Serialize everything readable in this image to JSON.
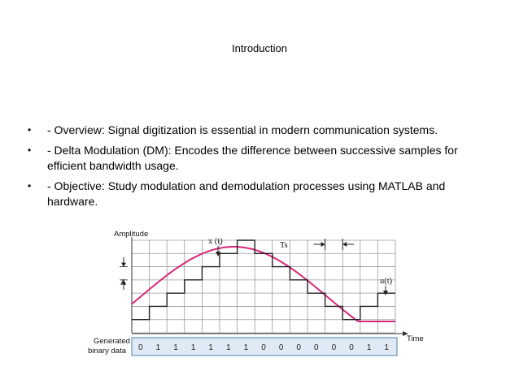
{
  "slide": {
    "title": "Introduction",
    "bullets": [
      "- Overview: Signal digitization is essential in modern communication systems.",
      "- Delta Modulation (DM): Encodes the difference between successive samples for efficient bandwidth usage.",
      "- Objective: Study modulation and demodulation processes using MATLAB and hardware."
    ],
    "bullet_glyph": "•"
  },
  "figure": {
    "amplitude_label": "Amplitude",
    "time_label": "Time",
    "x_label": "x (t)",
    "u_label": "u(t)",
    "ts_label": "Ts",
    "delta_label": "Δ",
    "generated_label_line1": "Generated",
    "generated_label_line2": "binary data",
    "bits": [
      "0",
      "1",
      "1",
      "1",
      "1",
      "1",
      "1",
      "0",
      "0",
      "0",
      "0",
      "0",
      "0",
      "1",
      "1"
    ],
    "staircase_levels": [
      1,
      2,
      3,
      4,
      5,
      6,
      7,
      6,
      5,
      4,
      3,
      2,
      1,
      2,
      3
    ],
    "signal_color": "#d6287a",
    "grid_color": "#9a9a9a",
    "bit_box_color": "#dfeaf5"
  }
}
